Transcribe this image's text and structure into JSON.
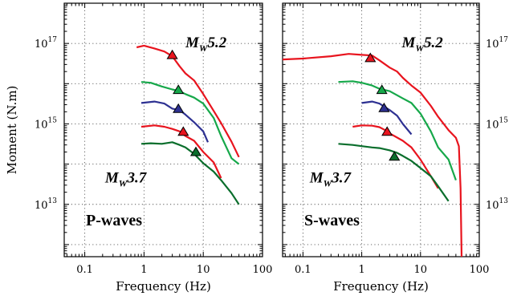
{
  "chart_data": [
    {
      "type": "line",
      "panel_label": "P-waves",
      "xlabel": "Frequency (Hz)",
      "ylabel": "Moment (N.m)",
      "xscale": "log",
      "yscale": "log",
      "xlim": [
        0.045,
        100
      ],
      "ylim": [
        500000000000.0,
        1e+18
      ],
      "grid": true,
      "xticks": [
        {
          "value": 0.1,
          "label": "0.1"
        },
        {
          "value": 1,
          "label": "1"
        },
        {
          "value": 10,
          "label": "10"
        },
        {
          "value": 100,
          "label": "100"
        }
      ],
      "yticks": [
        {
          "value": 10000000000000.0,
          "base": "10",
          "exp": "13"
        },
        {
          "value": 1000000000000000.0,
          "base": "10",
          "exp": "15"
        },
        {
          "value": 1e+17,
          "base": "10",
          "exp": "17"
        }
      ],
      "annotations": [
        {
          "text": "M",
          "sub": "W",
          "rest": "5.2",
          "x": 5.0,
          "y": 8e+16
        },
        {
          "text": "M",
          "sub": "W",
          "rest": "3.7",
          "x": 0.22,
          "y": 35000000000000.0
        }
      ],
      "series": [
        {
          "color": "#e8141e",
          "x": [
            0.75,
            1.0,
            1.5,
            2.2,
            3.0,
            4.0,
            5.0,
            7.0,
            10.0,
            15.0,
            20.0,
            30.0,
            40.0
          ],
          "y": [
            8e+16,
            8.8e+16,
            7.5e+16,
            6.3e+16,
            4.8e+16,
            2.7e+16,
            1.8e+16,
            1.2e+16,
            5500000000000000.0,
            2100000000000000.0,
            1050000000000000.0,
            360000000000000.0,
            150000000000000.0
          ],
          "marker": {
            "x": 3.0,
            "y": 5e+16
          }
        },
        {
          "color": "#16a84a",
          "x": [
            0.9,
            1.3,
            2.0,
            3.0,
            4.0,
            5.0,
            7.0,
            10.0,
            15.0,
            20.0,
            30.0,
            40.0
          ],
          "y": [
            1.1e+16,
            1.05e+16,
            8500000000000000.0,
            7200000000000000.0,
            6500000000000000.0,
            5500000000000000.0,
            4500000000000000.0,
            3200000000000000.0,
            1400000000000000.0,
            500000000000000.0,
            140000000000000.0,
            100000000000000.0
          ],
          "marker": {
            "x": 3.8,
            "y": 6800000000000000.0
          }
        },
        {
          "color": "#2e3192",
          "x": [
            0.9,
            1.5,
            2.2,
            3.0,
            4.0,
            5.0,
            7.0,
            10.0,
            12.0
          ],
          "y": [
            3300000000000000.0,
            3600000000000000.0,
            3200000000000000.0,
            2400000000000000.0,
            2200000000000000.0,
            1700000000000000.0,
            1100000000000000.0,
            650000000000000.0,
            350000000000000.0
          ],
          "marker": {
            "x": 3.8,
            "y": 2300000000000000.0
          }
        },
        {
          "color": "#e8141e",
          "x": [
            0.9,
            1.5,
            2.2,
            3.0,
            4.0,
            4.5,
            5.0,
            7.0,
            10.0,
            15.0,
            20.0
          ],
          "y": [
            850000000000000.0,
            920000000000000.0,
            850000000000000.0,
            750000000000000.0,
            650000000000000.0,
            560000000000000.0,
            500000000000000.0,
            380000000000000.0,
            200000000000000.0,
            110000000000000.0,
            45000000000000.0
          ],
          "marker": {
            "x": 4.6,
            "y": 620000000000000.0
          }
        },
        {
          "color": "#0a6e2c",
          "x": [
            0.9,
            1.3,
            2.0,
            3.0,
            4.0,
            5.0,
            7.0,
            10.0,
            15.0,
            20.0,
            30.0,
            40.0
          ],
          "y": [
            320000000000000.0,
            330000000000000.0,
            320000000000000.0,
            350000000000000.0,
            300000000000000.0,
            260000000000000.0,
            180000000000000.0,
            105000000000000.0,
            65000000000000.0,
            40000000000000.0,
            19000000000000.0,
            10000000000000.0
          ],
          "marker": {
            "x": 7.5,
            "y": 195000000000000.0
          }
        }
      ]
    },
    {
      "type": "line",
      "panel_label": "S-waves",
      "xlabel": "Frequency (Hz)",
      "ylabel": "",
      "xscale": "log",
      "yscale": "log",
      "xlim": [
        0.045,
        100
      ],
      "ylim": [
        500000000000.0,
        1e+18
      ],
      "grid": true,
      "xticks": [
        {
          "value": 0.1,
          "label": "0.1"
        },
        {
          "value": 1,
          "label": "1"
        },
        {
          "value": 10,
          "label": "10"
        },
        {
          "value": 100,
          "label": "100"
        }
      ],
      "yticks": [
        {
          "value": 10000000000000.0,
          "base": "10",
          "exp": "13"
        },
        {
          "value": 1000000000000000.0,
          "base": "10",
          "exp": "15"
        },
        {
          "value": 1e+17,
          "base": "10",
          "exp": "17"
        }
      ],
      "annotations": [
        {
          "text": "M",
          "sub": "W",
          "rest": "5.2",
          "x": 4.8,
          "y": 8e+16
        },
        {
          "text": "M",
          "sub": "W",
          "rest": "3.7",
          "x": 0.13,
          "y": 35000000000000.0
        }
      ],
      "series": [
        {
          "color": "#e8141e",
          "x": [
            0.045,
            0.1,
            0.3,
            0.6,
            1.0,
            1.5,
            2.0,
            3.0,
            4.0,
            5.0,
            7.0,
            10.0,
            15.0,
            20.0,
            30.0,
            40.0,
            45.0,
            48.0,
            50.0
          ],
          "y": [
            4e+16,
            4.2e+16,
            4.8e+16,
            5.5e+16,
            5.2e+16,
            5e+16,
            3.8e+16,
            2.5e+16,
            2e+16,
            1.4e+16,
            9000000000000000.0,
            6000000000000000.0,
            2800000000000000.0,
            1500000000000000.0,
            700000000000000.0,
            450000000000000.0,
            280000000000000.0,
            25000000000000.0,
            500000000000.0
          ],
          "marker": {
            "x": 1.4,
            "y": 4.2e+16
          }
        },
        {
          "color": "#16a84a",
          "x": [
            0.4,
            0.7,
            1.0,
            1.5,
            2.0,
            3.0,
            5.0,
            7.0,
            10.0,
            15.0,
            20.0,
            30.0,
            40.0
          ],
          "y": [
            1.1e+16,
            1.15e+16,
            1.05e+16,
            9000000000000000.0,
            7500000000000000.0,
            6500000000000000.0,
            4300000000000000.0,
            3300000000000000.0,
            1800000000000000.0,
            650000000000000.0,
            260000000000000.0,
            130000000000000.0,
            40000000000000.0
          ],
          "marker": {
            "x": 2.2,
            "y": 6800000000000000.0
          }
        },
        {
          "color": "#2e3192",
          "x": [
            1.0,
            1.5,
            2.0,
            2.5,
            3.0,
            4.0,
            5.0,
            7.0
          ],
          "y": [
            3300000000000000.0,
            3600000000000000.0,
            3200000000000000.0,
            2600000000000000.0,
            2200000000000000.0,
            1600000000000000.0,
            1000000000000000.0,
            550000000000000.0
          ],
          "marker": {
            "x": 2.4,
            "y": 2400000000000000.0
          }
        },
        {
          "color": "#e8141e",
          "x": [
            0.7,
            1.0,
            1.5,
            2.0,
            2.5,
            3.0,
            5.0,
            7.0,
            10.0,
            15.0,
            20.0
          ],
          "y": [
            850000000000000.0,
            920000000000000.0,
            900000000000000.0,
            830000000000000.0,
            700000000000000.0,
            580000000000000.0,
            380000000000000.0,
            260000000000000.0,
            130000000000000.0,
            50000000000000.0,
            25000000000000.0
          ],
          "marker": {
            "x": 2.7,
            "y": 620000000000000.0
          }
        },
        {
          "color": "#0a6e2c",
          "x": [
            0.4,
            0.7,
            1.0,
            1.5,
            2.0,
            3.0,
            4.0,
            5.0,
            7.0,
            10.0,
            15.0,
            20.0,
            30.0
          ],
          "y": [
            320000000000000.0,
            300000000000000.0,
            280000000000000.0,
            260000000000000.0,
            250000000000000.0,
            220000000000000.0,
            190000000000000.0,
            160000000000000.0,
            120000000000000.0,
            80000000000000.0,
            50000000000000.0,
            28000000000000.0,
            12000000000000.0
          ],
          "marker": {
            "x": 3.6,
            "y": 150000000000000.0
          }
        }
      ]
    }
  ]
}
